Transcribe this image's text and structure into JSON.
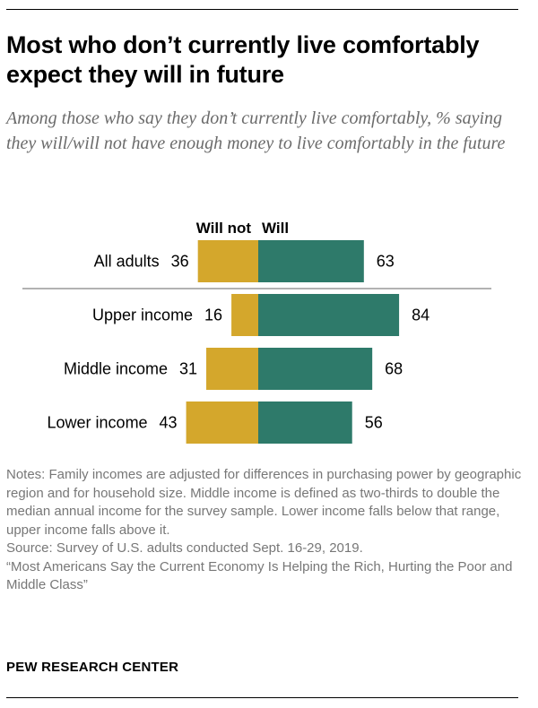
{
  "title": "Most who don’t currently live comfortably expect they will in future",
  "subtitle": "Among those who say they don’t currently live comfortably, % saying they will/will not have enough money to live comfortably in the future",
  "colors": {
    "will_not": "#D4A72C",
    "will": "#2E7A6A",
    "divider": "#666666"
  },
  "chart_data": {
    "type": "bar",
    "orientation": "horizontal-diverging",
    "categories": [
      "All adults",
      "Upper income",
      "Middle income",
      "Lower income"
    ],
    "series": [
      {
        "name": "Will not",
        "values": [
          36,
          16,
          31,
          43
        ]
      },
      {
        "name": "Will",
        "values": [
          63,
          84,
          68,
          56
        ]
      }
    ],
    "xlabel": "",
    "ylabel": "",
    "unit": "%"
  },
  "notes": {
    "notes_text": "Notes:  Family incomes are adjusted for differences in purchasing power by geographic region and for household size. Middle income is defined as two-thirds to double the median annual income for the survey sample. Lower income falls below that range, upper income falls above it.",
    "source": "Source: Survey of U.S. adults conducted Sept. 16-29, 2019.",
    "report": "“Most Americans Say the Current Economy Is Helping the Rich, Hurting the Poor and Middle Class”"
  },
  "brand": "PEW RESEARCH CENTER"
}
